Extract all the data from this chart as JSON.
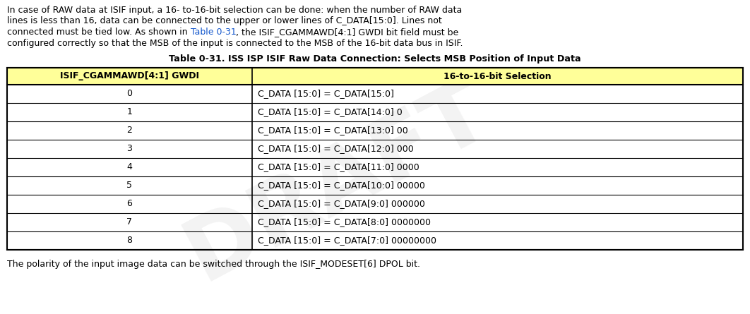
{
  "bg_color": "#ffffff",
  "intro_lines": [
    "In case of RAW data at ISIF input, a 16- to-16-bit selection can be done: when the number of RAW data",
    "lines is less than 16, data can be connected to the upper or lower lines of C_DATA[15:0]. Lines not",
    "connected must be tied low. As shown in ► Table 0-31 ◄, the ISIF_CGAMMAWD[4:1] GWDI bit field must be",
    "configured correctly so that the MSB of the input is connected to the MSB of the 16-bit data bus in ISIF."
  ],
  "intro_line2_before": "connected must be tied low. As shown in ",
  "intro_line2_link": "Table 0-31",
  "intro_line2_after": ", the ISIF_CGAMMAWD[4:1] GWDI bit field must be",
  "intro_link_color": "#1155CC",
  "table_title": "Table 0-31. ISS ISP ISIF Raw Data Connection: Selects MSB Position of Input Data",
  "col1_header": "ISIF_CGAMMAWD[4:1] GWDI",
  "col2_header": "16-to-16-bit Selection",
  "header_bg": "#ffff99",
  "col1_values": [
    "0",
    "1",
    "2",
    "3",
    "4",
    "5",
    "6",
    "7",
    "8"
  ],
  "col2_values": [
    "C_DATA [15:0] = C_DATA[15:0]",
    "C_DATA [15:0] = C_DATA[14:0] 0",
    "C_DATA [15:0] = C_DATA[13:0] 00",
    "C_DATA [15:0] = C_DATA[12:0] 000",
    "C_DATA [15:0] = C_DATA[11:0] 0000",
    "C_DATA [15:0] = C_DATA[10:0] 00000",
    "C_DATA [15:0] = C_DATA[9:0] 000000",
    "C_DATA [15:0] = C_DATA[8:0] 0000000",
    "C_DATA [15:0] = C_DATA[7:0] 00000000"
  ],
  "footer_text": "The polarity of the input image data can be switched through the ISIF_MODESET[6] DPOL bit.",
  "watermark_text": "DRAFT",
  "watermark_color": "#c8c8c8",
  "watermark_alpha": 0.22,
  "font_size": 9.0,
  "title_font_size": 9.2
}
